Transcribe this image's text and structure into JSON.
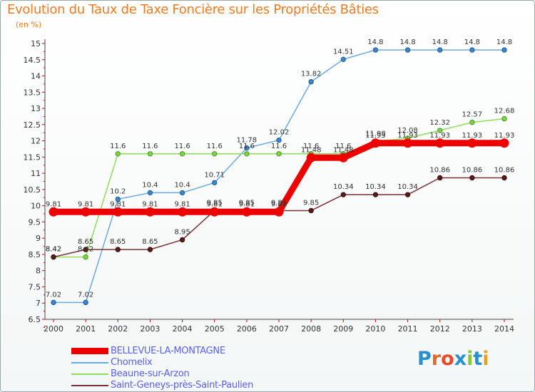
{
  "title": "Evolution du Taux de Taxe Foncière sur les Propriétés Bâties",
  "unit": "(en %)",
  "logo_text": "Proxiti",
  "chart_data": {
    "type": "line",
    "title": "Evolution du Taux de Taxe Foncière sur les Propriétés Bâties",
    "ylabel": "(en %)",
    "xlabel": "",
    "x": [
      2000,
      2001,
      2002,
      2003,
      2004,
      2005,
      2006,
      2007,
      2008,
      2009,
      2010,
      2011,
      2012,
      2013,
      2014
    ],
    "ylim": [
      6.5,
      15
    ],
    "yticks": [
      6.5,
      7,
      7.5,
      8,
      8.5,
      9,
      9.5,
      10,
      10.5,
      11,
      11.5,
      12,
      12.5,
      13,
      13.5,
      14,
      14.5,
      15
    ],
    "grid": false,
    "legend": "bottom-left",
    "series": [
      {
        "name": "BELLEVUE-LA-MONTAGNE",
        "color": "#ee0000",
        "values": [
          9.81,
          9.81,
          9.81,
          9.81,
          9.81,
          9.81,
          9.81,
          9.81,
          11.48,
          11.48,
          11.93,
          11.93,
          11.93,
          11.93,
          11.93
        ]
      },
      {
        "name": "Chomelix",
        "color": "#6aa9e0",
        "values": [
          7.02,
          7.02,
          10.2,
          10.4,
          10.4,
          10.71,
          11.78,
          12.02,
          13.82,
          14.51,
          14.8,
          14.8,
          14.8,
          14.8,
          14.8
        ]
      },
      {
        "name": "Beaune-sur-Arzon",
        "color": "#8edd5a",
        "values": [
          8.42,
          8.42,
          11.6,
          11.6,
          11.6,
          11.6,
          11.6,
          11.6,
          11.6,
          11.6,
          11.98,
          12.08,
          12.32,
          12.57,
          12.68
        ]
      },
      {
        "name": "Saint-Geneys-près-Saint-Paulien",
        "color": "#7a3333",
        "values": [
          8.42,
          8.65,
          8.65,
          8.65,
          8.95,
          9.85,
          9.85,
          9.85,
          9.85,
          10.34,
          10.34,
          10.34,
          10.86,
          10.86,
          10.86
        ]
      }
    ],
    "data_labels": [
      [
        "9.81",
        "9.81",
        "9.81",
        "9.81",
        "9.81",
        "9.81",
        "9.81",
        "9.81",
        "11.48",
        "11.48",
        "11.93",
        "11.93",
        "11.93",
        "11.93",
        "11.93"
      ],
      [
        "7.02",
        "7.02",
        "10.2",
        "10.4",
        "10.4",
        "10.71",
        "11.78",
        "12.02",
        "13.82",
        "14.51",
        "14.8",
        "14.8",
        "14.8",
        "14.8",
        "14.8"
      ],
      [
        "8.42",
        "8.42",
        "11.6",
        "11.6",
        "11.6",
        "11.6",
        "11.6",
        "11.6",
        "11.6",
        "11.6",
        "11.98",
        "12.08",
        "12.32",
        "12.57",
        "12.68"
      ],
      [
        "8.42",
        "8.65",
        "8.65",
        "8.65",
        "8.95",
        "9.85",
        "9.85",
        "9.85",
        "9.85",
        "10.34",
        "10.34",
        "10.34",
        "10.86",
        "10.86",
        "10.86"
      ]
    ]
  }
}
